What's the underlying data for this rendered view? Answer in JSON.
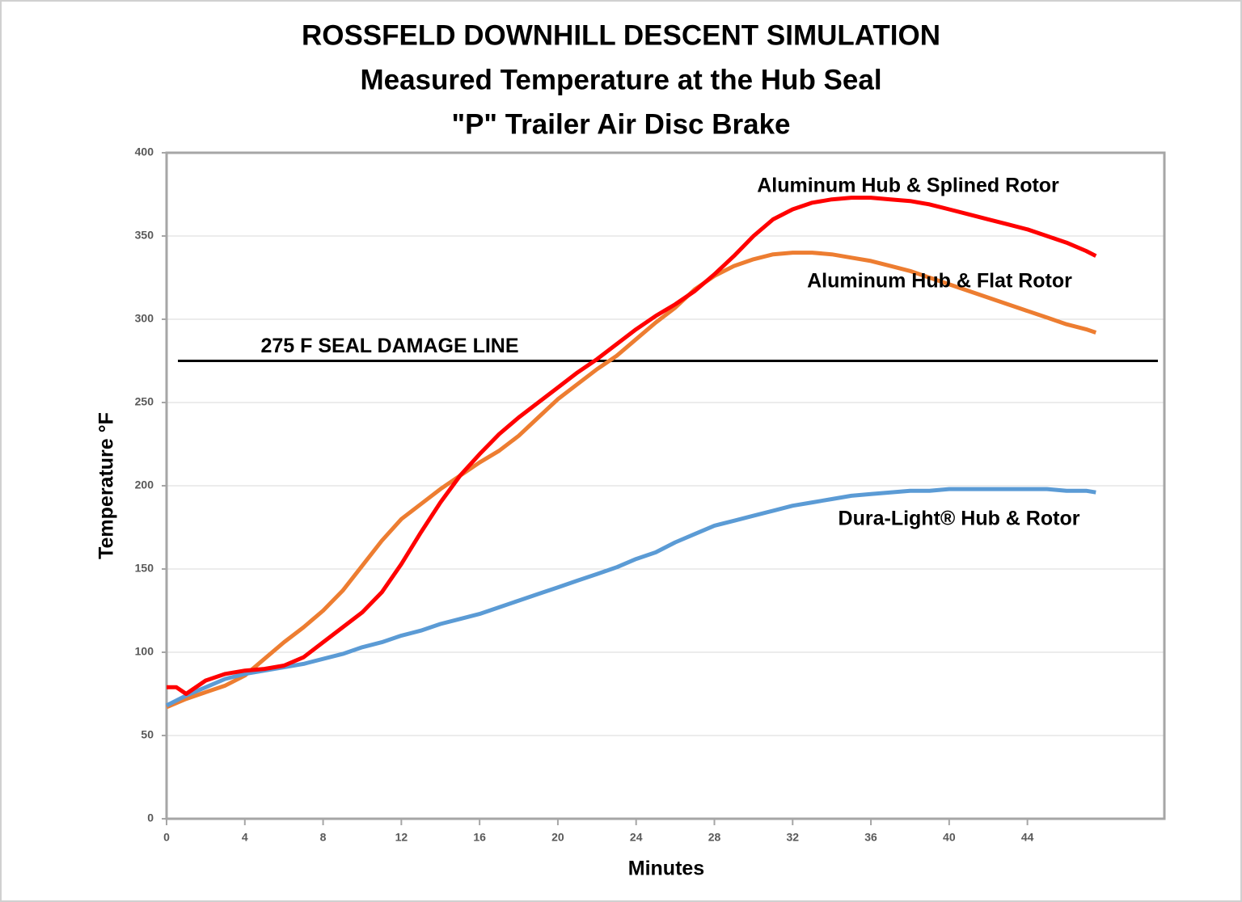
{
  "chart_data": {
    "type": "line",
    "title": "ROSSFELD DOWNHILL DESCENT SIMULATION",
    "subtitle": [
      "Measured Temperature at the Hub Seal",
      "\"P\" Trailer Air Disc Brake"
    ],
    "x_label": "Minutes",
    "y_label": "Temperature °F",
    "x": [
      0,
      0.5,
      1,
      2,
      3,
      4,
      5,
      6,
      7,
      8,
      9,
      10,
      11,
      12,
      13,
      14,
      15,
      16,
      17,
      18,
      19,
      20,
      21,
      22,
      23,
      24,
      25,
      26,
      27,
      28,
      29,
      30,
      31,
      32,
      33,
      34,
      35,
      36,
      37,
      38,
      39,
      40,
      41,
      42,
      43,
      44,
      45,
      46,
      47,
      47.5
    ],
    "series": [
      {
        "name": "Aluminum Hub & Splined Rotor",
        "color": "#ff0000",
        "values": [
          79,
          79,
          75,
          83,
          87,
          89,
          90,
          92,
          97,
          106,
          115,
          124,
          136,
          153,
          172,
          190,
          206,
          219,
          231,
          241,
          250,
          259,
          268,
          276,
          285,
          294,
          302,
          309,
          317,
          327,
          338,
          350,
          360,
          366,
          370,
          372,
          373,
          373,
          372,
          371,
          369,
          366,
          363,
          360,
          357,
          354,
          350,
          346,
          341,
          338
        ]
      },
      {
        "name": "Aluminum Hub & Flat Rotor",
        "color": "#ed7d31",
        "values": [
          67,
          69.5,
          72,
          76,
          80,
          86,
          96,
          106,
          115,
          125,
          137,
          152,
          167,
          180,
          189,
          198,
          206,
          214,
          221,
          230,
          241,
          252,
          261,
          270,
          278,
          288,
          298,
          307,
          318,
          326,
          332,
          336,
          339,
          340,
          340,
          339,
          337,
          335,
          332,
          329,
          325,
          321,
          317,
          313,
          309,
          305,
          301,
          297,
          294,
          292
        ]
      },
      {
        "name": "Dura-Light® Hub & Rotor",
        "color": "#5b9bd5",
        "values": [
          68,
          71,
          74,
          79,
          84,
          87,
          89,
          91,
          93,
          96,
          99,
          103,
          106,
          110,
          113,
          117,
          120,
          123,
          127,
          131,
          135,
          139,
          143,
          147,
          151,
          156,
          160,
          166,
          171,
          176,
          179,
          182,
          185,
          188,
          190,
          192,
          194,
          195,
          196,
          197,
          197,
          198,
          198,
          198,
          198,
          198,
          198,
          197,
          197,
          196
        ]
      }
    ],
    "reference_line": {
      "value": 275,
      "label": "275 F SEAL DAMAGE LINE"
    },
    "xlim": [
      0,
      51
    ],
    "xticks": [
      0,
      4,
      8,
      12,
      16,
      20,
      24,
      28,
      32,
      36,
      40,
      44
    ],
    "ylim": [
      0,
      400
    ],
    "yticks": [
      0,
      50,
      100,
      150,
      200,
      250,
      300,
      350,
      400
    ],
    "grid": true
  }
}
